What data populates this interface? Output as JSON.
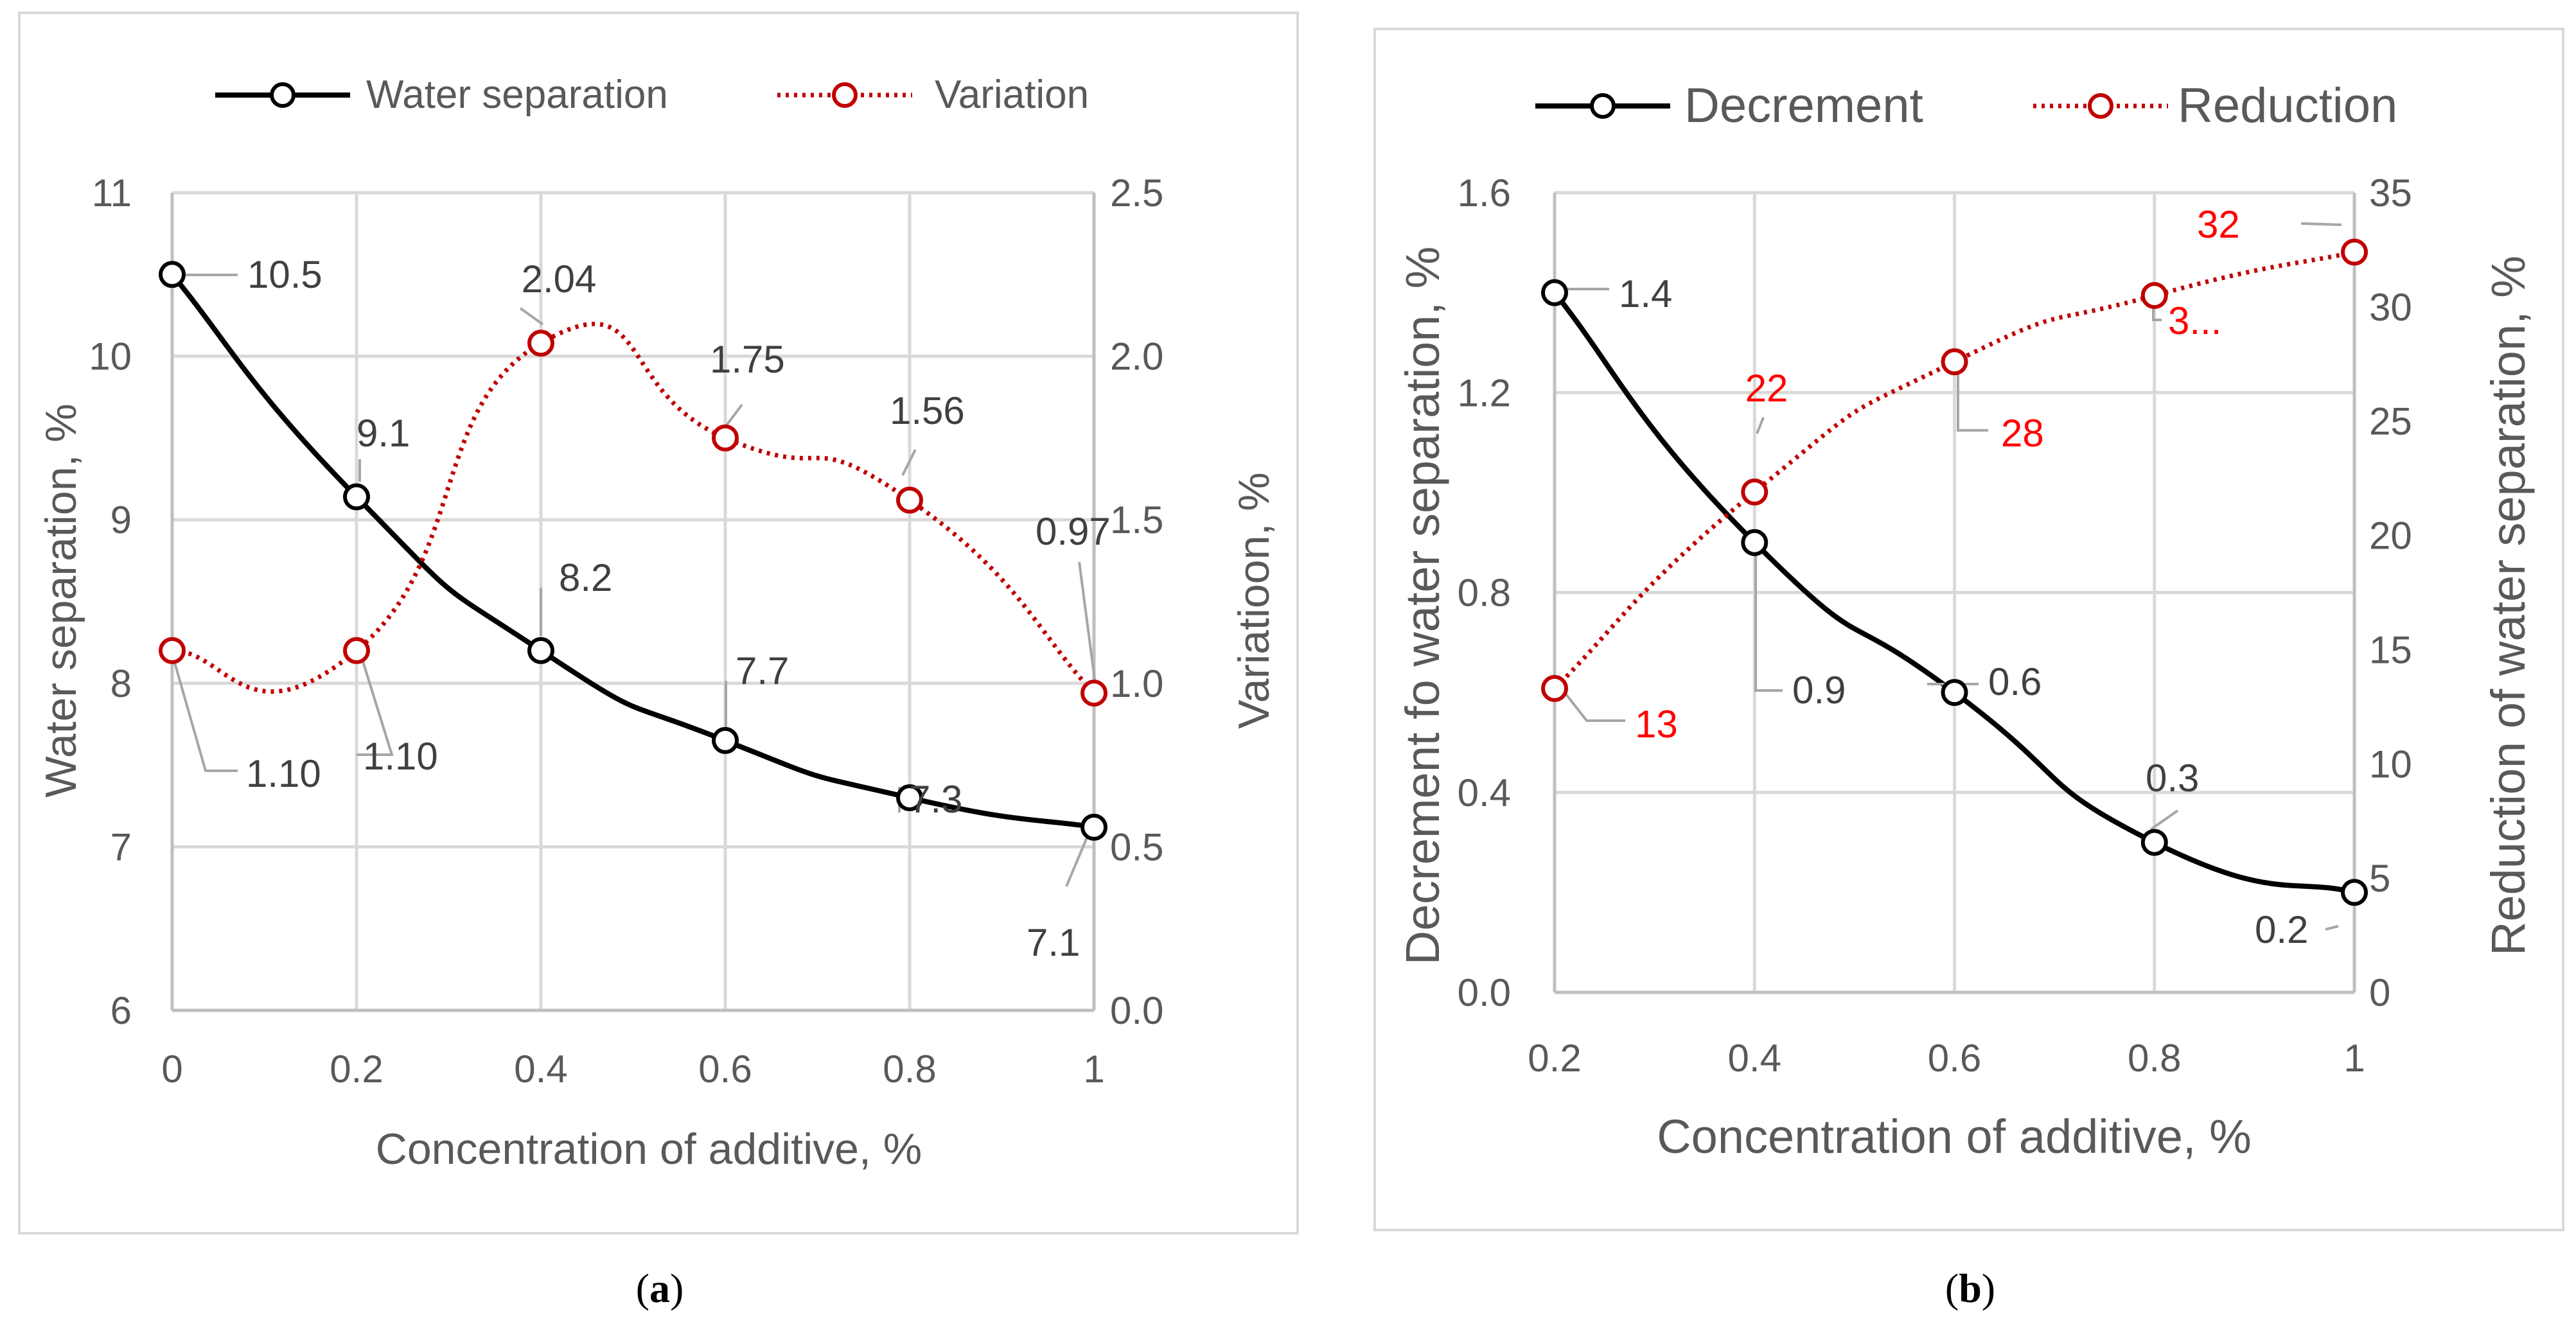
{
  "chart_data": [
    {
      "panel": "a",
      "type": "line",
      "caption": {
        "open": "(",
        "letter": "a",
        "close": ")"
      },
      "xlabel": "Concentration of additive, %",
      "ylabel_left": "Water separation, %",
      "ylabel_right": "Variatioon, %",
      "x": [
        0,
        0.2,
        0.4,
        0.6,
        0.8,
        1
      ],
      "x_ticks": [
        "0",
        "0.2",
        "0.4",
        "0.6",
        "0.8",
        "1"
      ],
      "xlim": [
        0,
        1
      ],
      "ylim_left": [
        6,
        11
      ],
      "ylim_right": [
        0,
        2.5
      ],
      "y_ticks_left": [
        "6",
        "7",
        "8",
        "9",
        "10",
        "11"
      ],
      "y_ticks_right": [
        "0.0",
        "0.5",
        "1.0",
        "1.5",
        "2.0",
        "2.5"
      ],
      "grid": true,
      "legend_position": "top",
      "series": [
        {
          "name": "Water separation",
          "axis": "left",
          "color": "#000000",
          "style": "solid",
          "values": [
            10.5,
            9.14,
            8.2,
            7.65,
            7.3,
            7.12
          ],
          "labels": [
            "10.5",
            "9.1",
            "8.2",
            "7.7",
            "7.3",
            "7.1"
          ]
        },
        {
          "name": "Variation",
          "axis": "right",
          "color": "#c00000",
          "style": "dotted",
          "values": [
            1.1,
            1.1,
            2.04,
            1.75,
            1.56,
            0.97
          ],
          "labels": [
            "1.10",
            "1.10",
            "2.04",
            "1.75",
            "1.56",
            "0.97"
          ]
        }
      ]
    },
    {
      "panel": "b",
      "type": "line",
      "caption": {
        "open": "(",
        "letter": "b",
        "close": ")"
      },
      "xlabel": "Concentration of additive, %",
      "ylabel_left": "Decrement fo water separation, %",
      "ylabel_right": "Reduction of water separation, %",
      "x": [
        0.2,
        0.4,
        0.6,
        0.8,
        1
      ],
      "x_ticks": [
        "0.2",
        "0.4",
        "0.6",
        "0.8",
        "1"
      ],
      "xlim": [
        0.2,
        1
      ],
      "ylim_left": [
        0,
        1.6
      ],
      "ylim_right": [
        0,
        35
      ],
      "y_ticks_left": [
        "0.0",
        "0.4",
        "0.8",
        "1.2",
        "1.6"
      ],
      "y_ticks_right": [
        "0",
        "5",
        "10",
        "15",
        "20",
        "25",
        "30",
        "35"
      ],
      "grid": true,
      "legend_position": "top",
      "series": [
        {
          "name": "Decrement",
          "axis": "left",
          "color": "#000000",
          "style": "solid",
          "values": [
            1.4,
            0.9,
            0.6,
            0.3,
            0.2
          ],
          "labels": [
            "1.4",
            "0.9",
            "0.6",
            "0.3",
            "0.2"
          ]
        },
        {
          "name": "Reduction",
          "axis": "right",
          "color": "#c00000",
          "style": "dotted",
          "values": [
            13.3,
            21.9,
            27.6,
            30.5,
            32.4
          ],
          "labels": [
            "13",
            "22",
            "28",
            "3...",
            "32"
          ]
        }
      ]
    }
  ]
}
